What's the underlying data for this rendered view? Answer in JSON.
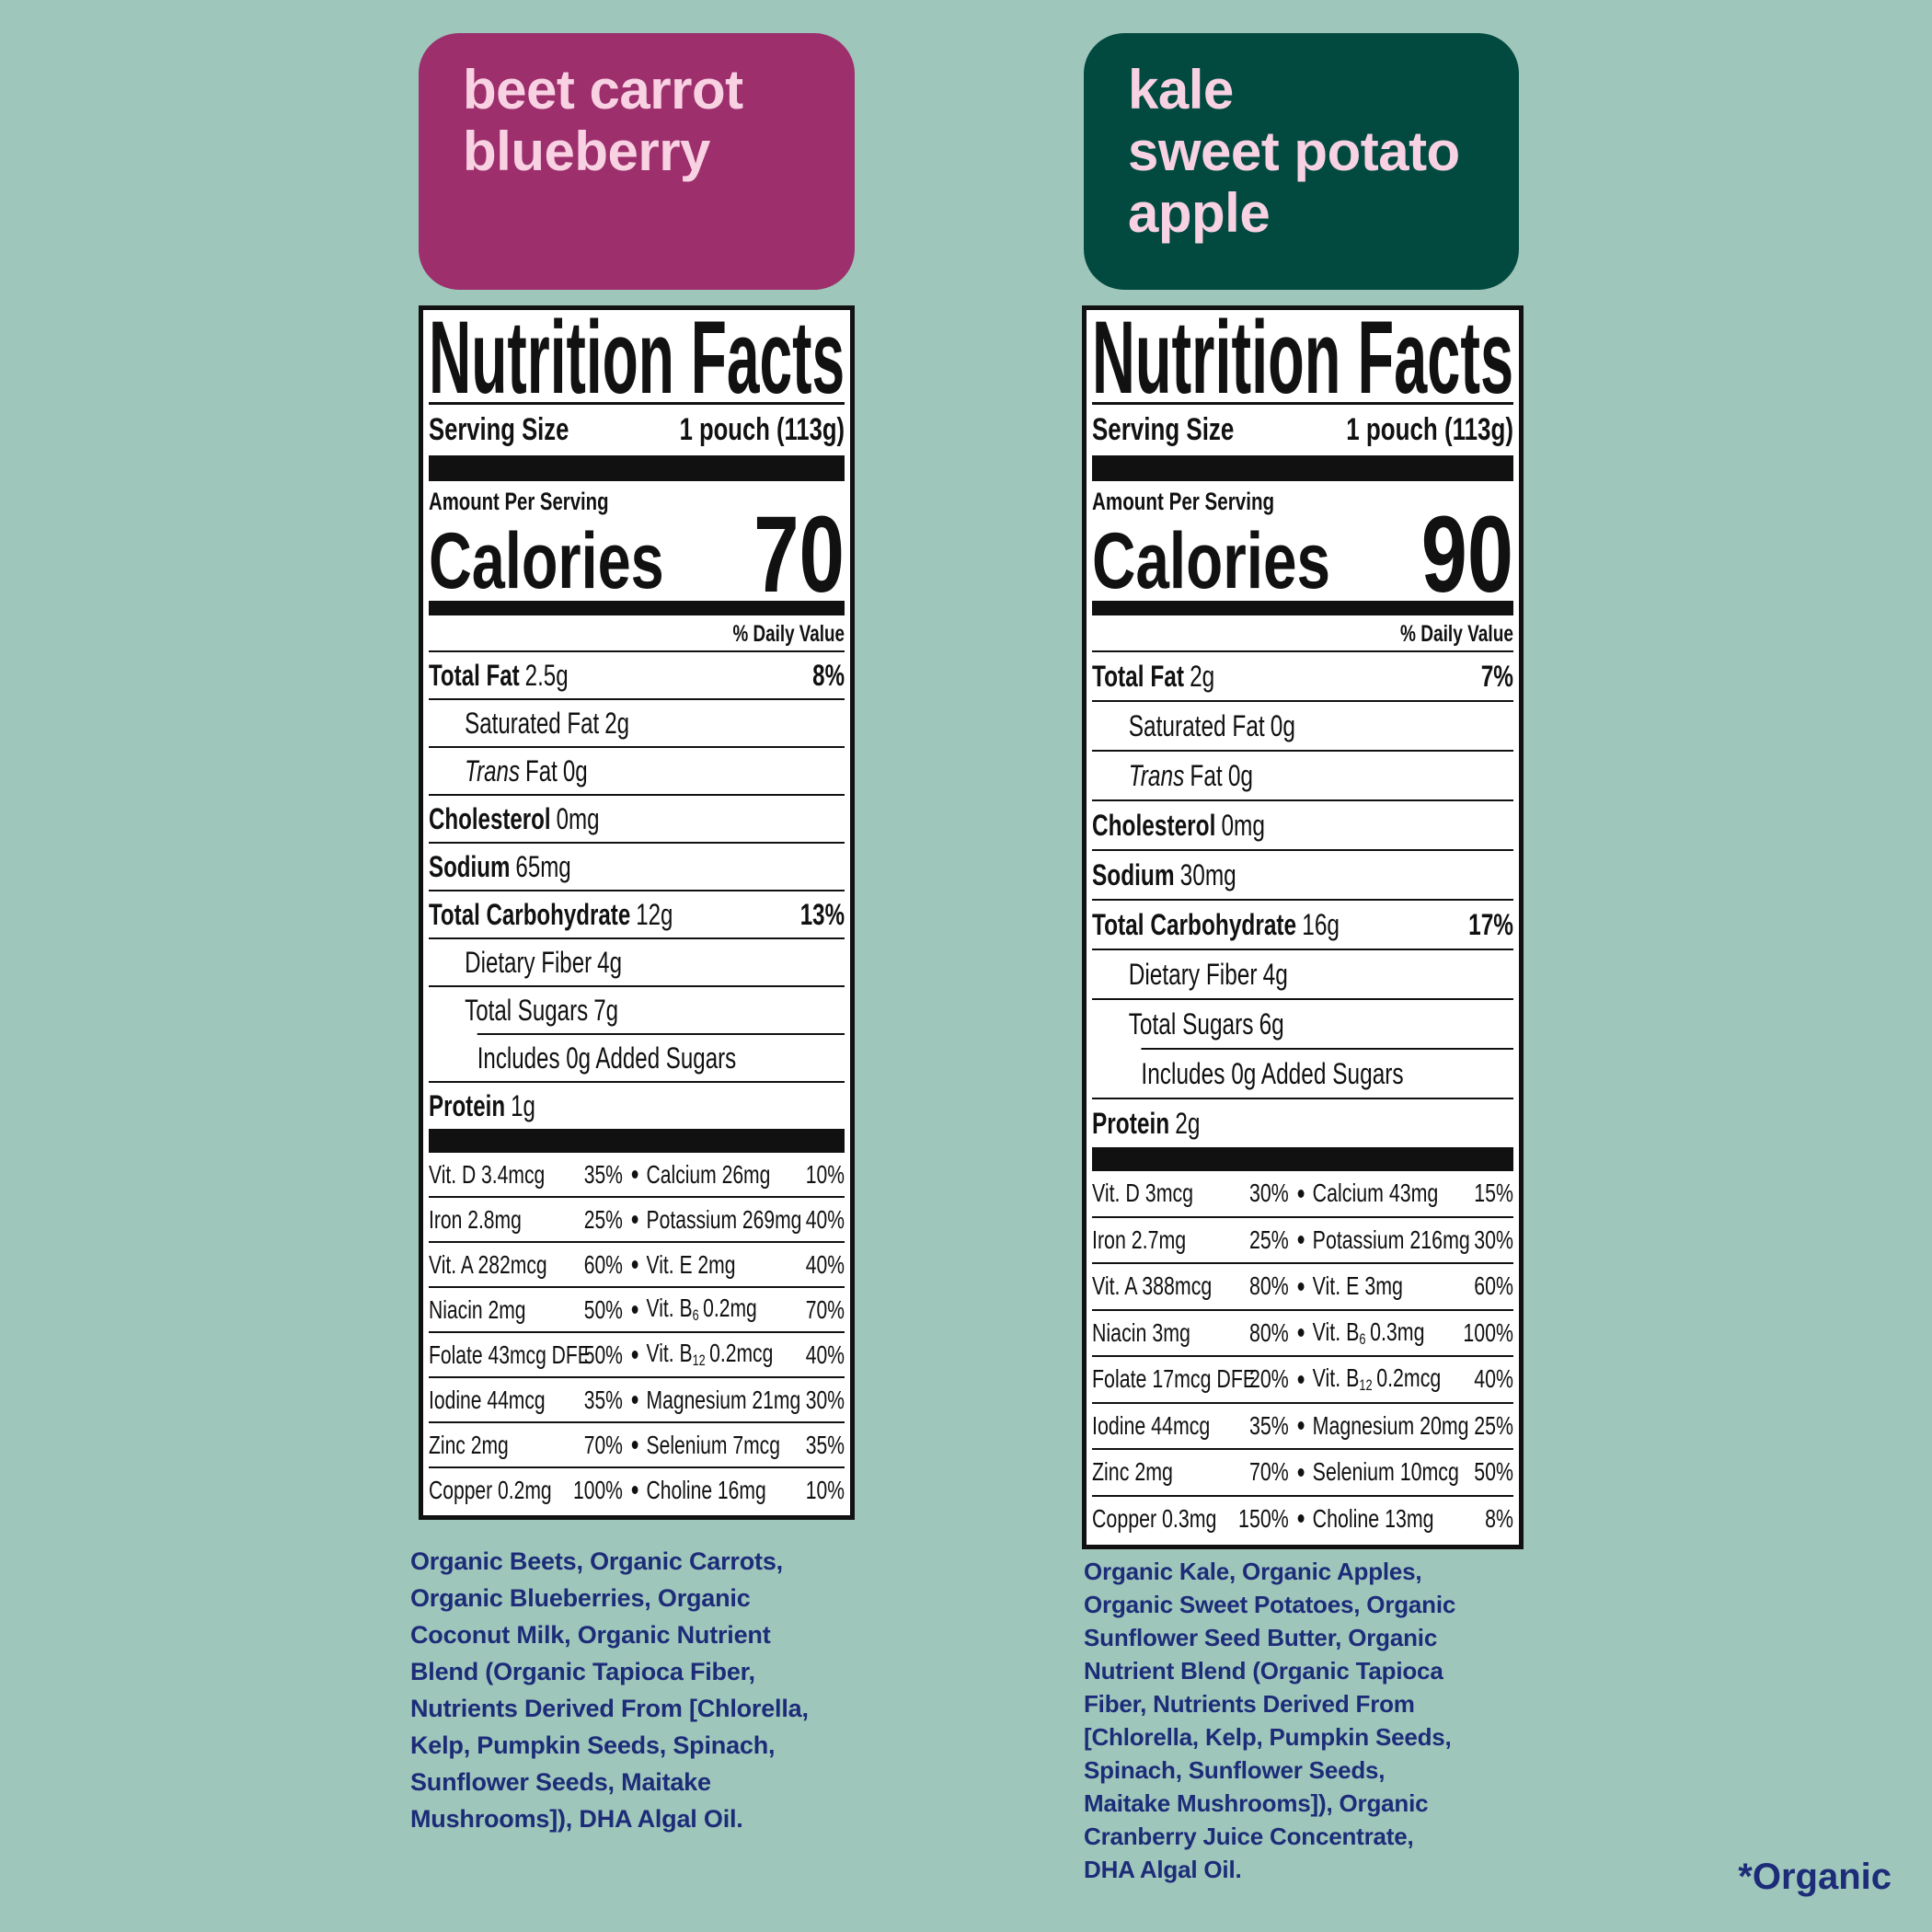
{
  "products": [
    {
      "name": [
        "beet carrot",
        "blueberry"
      ],
      "label": {
        "title": "Nutrition Facts",
        "serving_label": "Serving Size",
        "serving_size": "1 pouch (113g)",
        "amount_per_serving": "Amount Per Serving",
        "calories_label": "Calories",
        "calories": 70,
        "daily_value_header": "% Daily Value",
        "rows": [
          {
            "label": "Total Fat",
            "amount": "2.5g",
            "dv": "8%",
            "bold": true
          },
          {
            "label": "Saturated Fat",
            "amount": "2g",
            "indent": 1
          },
          {
            "italic": "Trans",
            "label": "Fat",
            "amount": "0g",
            "indent": 1
          },
          {
            "label": "Cholesterol",
            "amount": "0mg",
            "bold": true
          },
          {
            "label": "Sodium",
            "amount": "65mg",
            "bold": true
          },
          {
            "label": "Total Carbohydrate",
            "amount": "12g",
            "dv": "13%",
            "bold": true
          },
          {
            "label": "Dietary Fiber",
            "amount": "4g",
            "indent": 1
          },
          {
            "label": "Total Sugars",
            "amount": "7g",
            "indent": 1
          },
          {
            "label": "Includes 0g Added Sugars",
            "indent": 2
          },
          {
            "label": "Protein",
            "amount": "1g",
            "bold": true
          }
        ],
        "micros": [
          [
            {
              "name": "Vit. D 3.4mcg",
              "dv": "35%"
            },
            {
              "name": "Calcium 26mg",
              "dv": "10%"
            }
          ],
          [
            {
              "name": "Iron 2.8mg",
              "dv": "25%"
            },
            {
              "name": "Potassium 269mg",
              "dv": "40%"
            }
          ],
          [
            {
              "name": "Vit. A 282mcg",
              "dv": "60%"
            },
            {
              "name": "Vit. E 2mg",
              "dv": "40%"
            }
          ],
          [
            {
              "name": "Niacin 2mg",
              "dv": "50%"
            },
            {
              "name": "Vit. B",
              "sub": "6",
              "amount": "0.2mg",
              "dv": "70%"
            }
          ],
          [
            {
              "name": "Folate 43mcg DFE",
              "dv": "50%"
            },
            {
              "name": "Vit. B",
              "sub": "12",
              "amount": "0.2mcg",
              "dv": "40%"
            }
          ],
          [
            {
              "name": "Iodine 44mcg",
              "dv": "35%"
            },
            {
              "name": "Magnesium 21mg",
              "dv": "30%"
            }
          ],
          [
            {
              "name": "Zinc 2mg",
              "dv": "70%"
            },
            {
              "name": "Selenium 7mcg",
              "dv": "35%"
            }
          ],
          [
            {
              "name": "Copper 0.2mg",
              "dv": "100%"
            },
            {
              "name": "Choline 16mg",
              "dv": "10%"
            }
          ]
        ]
      },
      "ingredients": [
        "Organic Beets, Organic Carrots,",
        "Organic Blueberries, Organic",
        "Coconut Milk, Organic Nutrient",
        "Blend (Organic Tapioca Fiber,",
        "Nutrients Derived From [Chlorella,",
        "Kelp, Pumpkin Seeds, Spinach,",
        "Sunflower Seeds, Maitake",
        "Mushrooms]), DHA Algal Oil."
      ]
    },
    {
      "name": [
        "kale",
        "sweet potato",
        "apple"
      ],
      "label": {
        "title": "Nutrition Facts",
        "serving_label": "Serving Size",
        "serving_size": "1 pouch (113g)",
        "amount_per_serving": "Amount Per Serving",
        "calories_label": "Calories",
        "calories": 90,
        "daily_value_header": "% Daily Value",
        "rows": [
          {
            "label": "Total Fat",
            "amount": "2g",
            "dv": "7%",
            "bold": true
          },
          {
            "label": "Saturated Fat",
            "amount": "0g",
            "indent": 1
          },
          {
            "italic": "Trans",
            "label": "Fat",
            "amount": "0g",
            "indent": 1
          },
          {
            "label": "Cholesterol",
            "amount": "0mg",
            "bold": true
          },
          {
            "label": "Sodium",
            "amount": "30mg",
            "bold": true
          },
          {
            "label": "Total Carbohydrate",
            "amount": "16g",
            "dv": "17%",
            "bold": true
          },
          {
            "label": "Dietary Fiber",
            "amount": "4g",
            "indent": 1
          },
          {
            "label": "Total Sugars",
            "amount": "6g",
            "indent": 1
          },
          {
            "label": "Includes 0g Added Sugars",
            "indent": 2
          },
          {
            "label": "Protein",
            "amount": "2g",
            "bold": true
          }
        ],
        "micros": [
          [
            {
              "name": "Vit. D 3mcg",
              "dv": "30%"
            },
            {
              "name": "Calcium 43mg",
              "dv": "15%"
            }
          ],
          [
            {
              "name": "Iron 2.7mg",
              "dv": "25%"
            },
            {
              "name": "Potassium 216mg",
              "dv": "30%"
            }
          ],
          [
            {
              "name": "Vit. A 388mcg",
              "dv": "80%"
            },
            {
              "name": "Vit. E 3mg",
              "dv": "60%"
            }
          ],
          [
            {
              "name": "Niacin 3mg",
              "dv": "80%"
            },
            {
              "name": "Vit. B",
              "sub": "6",
              "amount": "0.3mg",
              "dv": "100%"
            }
          ],
          [
            {
              "name": "Folate 17mcg DFE",
              "dv": "20%"
            },
            {
              "name": "Vit. B",
              "sub": "12",
              "amount": "0.2mcg",
              "dv": "40%"
            }
          ],
          [
            {
              "name": "Iodine 44mcg",
              "dv": "35%"
            },
            {
              "name": "Magnesium 20mg",
              "dv": "25%"
            }
          ],
          [
            {
              "name": "Zinc 2mg",
              "dv": "70%"
            },
            {
              "name": "Selenium 10mcg",
              "dv": "50%"
            }
          ],
          [
            {
              "name": "Copper 0.3mg",
              "dv": "150%"
            },
            {
              "name": "Choline 13mg",
              "dv": "8%"
            }
          ]
        ]
      },
      "ingredients": [
        "Organic Kale, Organic Apples,",
        "Organic Sweet Potatoes, Organic",
        "Sunflower Seed Butter, Organic",
        "Nutrient Blend (Organic Tapioca",
        "Fiber, Nutrients Derived From",
        "[Chlorella, Kelp, Pumpkin Seeds,",
        "Spinach, Sunflower Seeds,",
        "Maitake Mushrooms]), Organic",
        "Cranberry Juice Concentrate,",
        "DHA Algal Oil."
      ]
    }
  ],
  "footnote": "*Organic"
}
